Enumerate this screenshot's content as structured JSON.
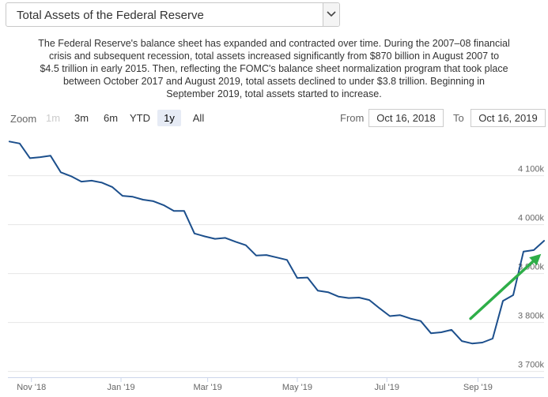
{
  "selector": {
    "value": "Total Assets of the Federal Reserve"
  },
  "description": [
    "The Federal Reserve's balance sheet has expanded and contracted over time. During the 2007–08 financial",
    "crisis and subsequent recession, total assets increased significantly from $870 billion in August 2007 to",
    "$4.5 trillion in early 2015. Then, reflecting the FOMC's balance sheet normalization program that took place",
    "between October 2017 and August 2019, total assets declined to under $3.8 trillion. Beginning in",
    "September 2019, total assets started to increase."
  ],
  "zoom": {
    "label": "Zoom",
    "buttons": [
      "1m",
      "3m",
      "6m",
      "YTD",
      "1y",
      "All"
    ],
    "active": "1y",
    "disabled": [
      "1m"
    ]
  },
  "range": {
    "from_label": "From",
    "from_value": "Oct 16, 2018",
    "to_label": "To",
    "to_value": "Oct 16, 2019"
  },
  "colors": {
    "line": "#1c4f8c",
    "annotation_arrow": "#2eae48",
    "grid": "#e6e6e6"
  },
  "chart_data": {
    "type": "line",
    "title": "",
    "xlabel": "",
    "ylabel": "",
    "y_tick_labels": [
      "3 700k",
      "3 800k",
      "3 900k",
      "4 000k",
      "4 100k"
    ],
    "y_ticks": [
      3700,
      3800,
      3900,
      4000,
      4100
    ],
    "ylim": [
      3688,
      4185
    ],
    "x_tick_labels": [
      "Nov '18",
      "Jan '19",
      "Mar '19",
      "May '19",
      "Jul '19",
      "Sep '19"
    ],
    "x_ticks": [
      "2018-11-01",
      "2019-01-01",
      "2019-03-01",
      "2019-05-01",
      "2019-07-01",
      "2019-09-01"
    ],
    "xlim": [
      "2018-10-16",
      "2019-10-16"
    ],
    "grid": "horizontal",
    "series": [
      {
        "values": [
          [
            "2018-10-17",
            4170
          ],
          [
            "2018-10-24",
            4166
          ],
          [
            "2018-10-31",
            4136
          ],
          [
            "2018-11-07",
            4138
          ],
          [
            "2018-11-14",
            4141
          ],
          [
            "2018-11-21",
            4107
          ],
          [
            "2018-11-28",
            4099
          ],
          [
            "2018-12-05",
            4088
          ],
          [
            "2018-12-12",
            4090
          ],
          [
            "2018-12-19",
            4086
          ],
          [
            "2018-12-26",
            4077
          ],
          [
            "2019-01-02",
            4059
          ],
          [
            "2019-01-09",
            4057
          ],
          [
            "2019-01-16",
            4051
          ],
          [
            "2019-01-23",
            4048
          ],
          [
            "2019-01-30",
            4040
          ],
          [
            "2019-02-06",
            4028
          ],
          [
            "2019-02-13",
            4028
          ],
          [
            "2019-02-20",
            3982
          ],
          [
            "2019-02-27",
            3976
          ],
          [
            "2019-03-06",
            3971
          ],
          [
            "2019-03-13",
            3973
          ],
          [
            "2019-03-20",
            3965
          ],
          [
            "2019-03-27",
            3958
          ],
          [
            "2019-04-03",
            3937
          ],
          [
            "2019-04-10",
            3938
          ],
          [
            "2019-04-17",
            3933
          ],
          [
            "2019-04-24",
            3928
          ],
          [
            "2019-05-01",
            3891
          ],
          [
            "2019-05-08",
            3892
          ],
          [
            "2019-05-15",
            3865
          ],
          [
            "2019-05-22",
            3862
          ],
          [
            "2019-05-29",
            3853
          ],
          [
            "2019-06-05",
            3850
          ],
          [
            "2019-06-12",
            3851
          ],
          [
            "2019-06-19",
            3846
          ],
          [
            "2019-06-26",
            3829
          ],
          [
            "2019-07-03",
            3813
          ],
          [
            "2019-07-10",
            3815
          ],
          [
            "2019-07-17",
            3808
          ],
          [
            "2019-07-24",
            3803
          ],
          [
            "2019-07-31",
            3778
          ],
          [
            "2019-08-07",
            3780
          ],
          [
            "2019-08-14",
            3785
          ],
          [
            "2019-08-21",
            3762
          ],
          [
            "2019-08-28",
            3757
          ],
          [
            "2019-09-04",
            3759
          ],
          [
            "2019-09-11",
            3767
          ],
          [
            "2019-09-18",
            3844
          ],
          [
            "2019-09-25",
            3856
          ],
          [
            "2019-10-02",
            3945
          ],
          [
            "2019-10-09",
            3948
          ],
          [
            "2019-10-16",
            3967
          ]
        ]
      }
    ],
    "annotations": [
      {
        "type": "arrow",
        "from": [
          "2019-08-27",
          3808
        ],
        "to": [
          "2019-10-14",
          3940
        ]
      }
    ]
  }
}
